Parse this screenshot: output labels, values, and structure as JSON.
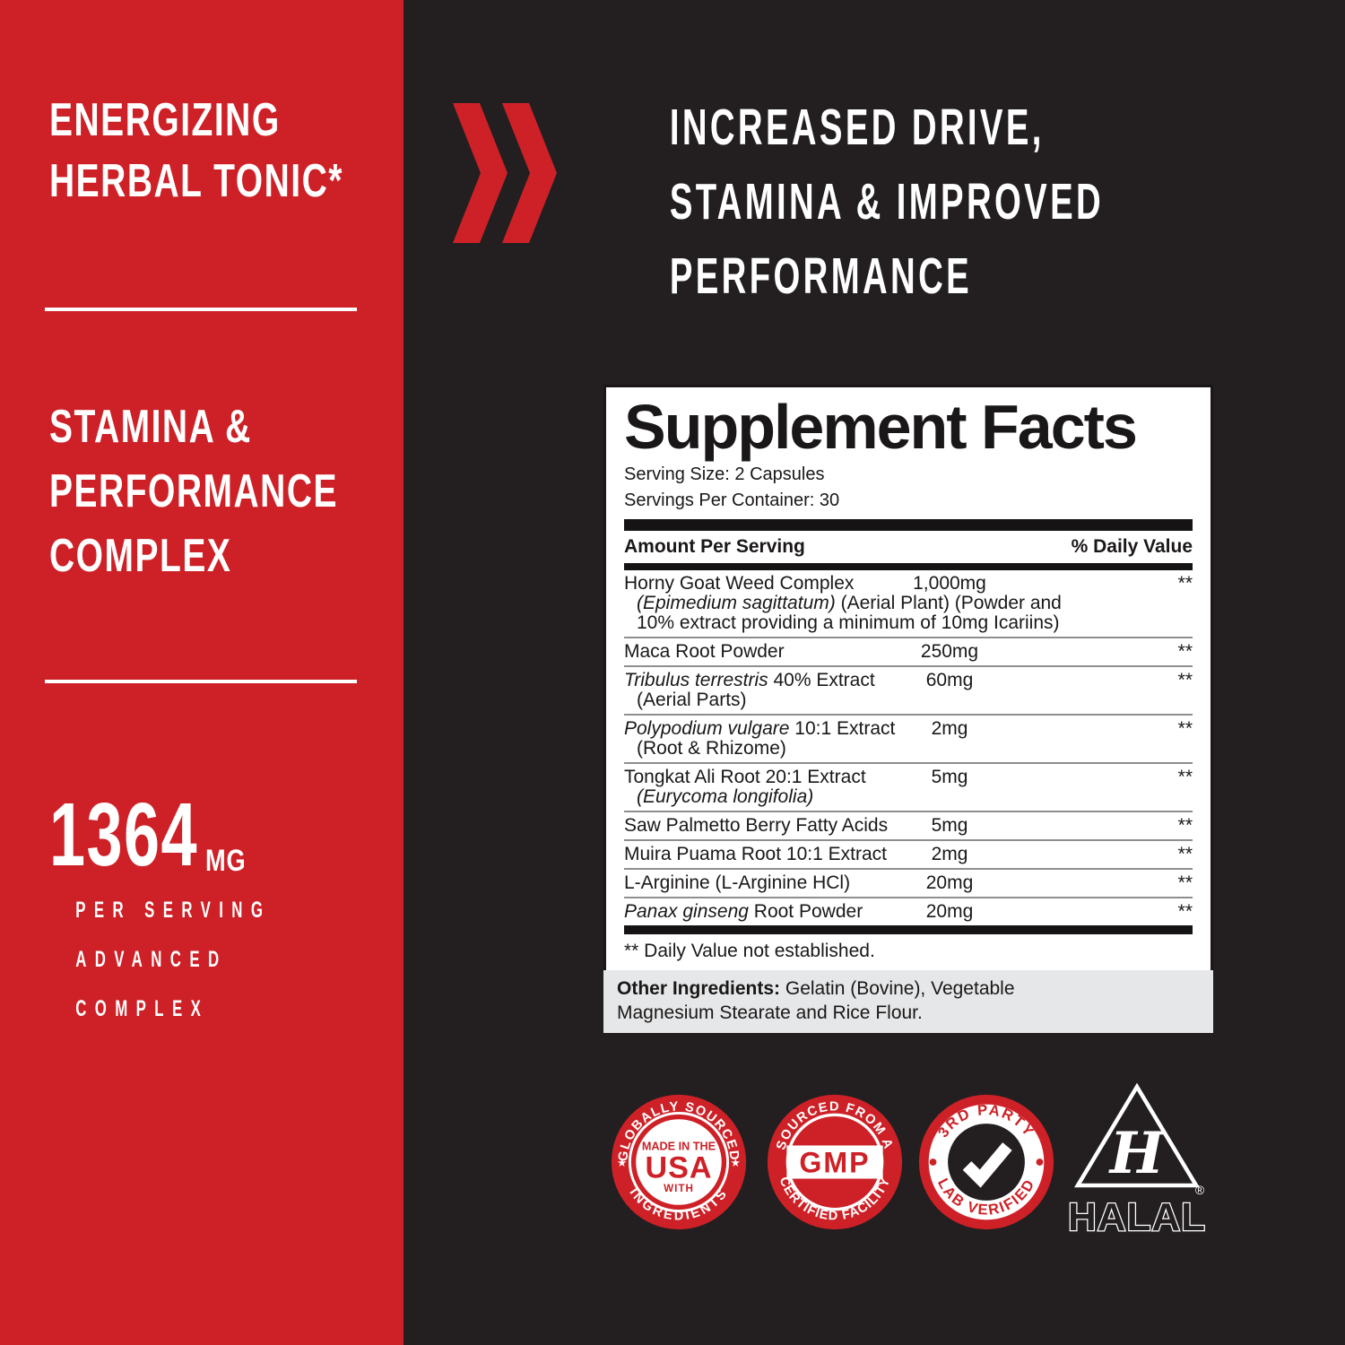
{
  "colors": {
    "red": "#CD2127",
    "dark": "#231F20",
    "gray_box": "#E6E7E8",
    "white": "#FFFFFF"
  },
  "left_panel": {
    "claim_primary": {
      "lines": [
        "ENERGIZING",
        "HERBAL TONIC*"
      ]
    },
    "claim_secondary": {
      "lines": [
        "STAMINA &",
        "PERFORMANCE",
        "COMPLEX"
      ]
    },
    "dose": {
      "value": "1364",
      "unit": "MG",
      "lines": [
        "PER SERVING",
        "ADVANCED",
        "COMPLEX"
      ]
    }
  },
  "headline": {
    "lines": [
      "INCREASED DRIVE,",
      "STAMINA & IMPROVED",
      "PERFORMANCE"
    ]
  },
  "facts": {
    "title": "Supplement Facts",
    "serving_size": "Serving Size: 2 Capsules",
    "servings_per_container": "Servings Per Container: 30",
    "amount_header": "Amount Per Serving",
    "dv_header": "% Daily Value",
    "rows": [
      {
        "name": [
          {
            "t": "Horny Goat Weed Complex",
            "i": false
          }
        ],
        "sub": [
          [
            {
              "t": "(Epimedium sagittatum)",
              "i": true
            },
            {
              "t": " (Aerial Plant) (Powder and",
              "i": false
            }
          ],
          [
            {
              "t": "10% extract providing a minimum of 10mg Icariins)",
              "i": false
            }
          ]
        ],
        "amount": "1,000mg",
        "dv": "**"
      },
      {
        "name": [
          {
            "t": "Maca Root Powder",
            "i": false
          }
        ],
        "sub": [],
        "amount": "250mg",
        "dv": "**"
      },
      {
        "name": [
          {
            "t": "Tribulus terrestris",
            "i": true
          },
          {
            "t": " 40% Extract",
            "i": false
          }
        ],
        "sub": [
          [
            {
              "t": "(Aerial Parts)",
              "i": false
            }
          ]
        ],
        "amount": "60mg",
        "dv": "**"
      },
      {
        "name": [
          {
            "t": "Polypodium vulgare",
            "i": true
          },
          {
            "t": " 10:1 Extract",
            "i": false
          }
        ],
        "sub": [
          [
            {
              "t": "(Root & Rhizome)",
              "i": false
            }
          ]
        ],
        "amount": "2mg",
        "dv": "**"
      },
      {
        "name": [
          {
            "t": "Tongkat Ali Root 20:1 Extract",
            "i": false
          }
        ],
        "sub": [
          [
            {
              "t": "(Eurycoma longifolia)",
              "i": true
            }
          ]
        ],
        "amount": "5mg",
        "dv": "**"
      },
      {
        "name": [
          {
            "t": "Saw Palmetto Berry Fatty Acids",
            "i": false
          }
        ],
        "sub": [],
        "amount": "5mg",
        "dv": "**"
      },
      {
        "name": [
          {
            "t": "Muira Puama Root 10:1 Extract",
            "i": false
          }
        ],
        "sub": [],
        "amount": "2mg",
        "dv": "**"
      },
      {
        "name": [
          {
            "t": "L-Arginine (L-Arginine HCl)",
            "i": false
          }
        ],
        "sub": [],
        "amount": "20mg",
        "dv": "**"
      },
      {
        "name": [
          {
            "t": "Panax ginseng",
            "i": true
          },
          {
            "t": " Root Powder",
            "i": false
          }
        ],
        "sub": [],
        "amount": "20mg",
        "dv": "**"
      }
    ],
    "footnote": "** Daily Value not established."
  },
  "other_ingredients": {
    "label": "Other Ingredients:",
    "line1_rest": " Gelatin (Bovine), Vegetable",
    "line2": "Magnesium Stearate and Rice Flour."
  },
  "badges": {
    "usa": {
      "arc_top": "GLOBALLY SOURCED",
      "arc_bottom": "INGREDIENTS",
      "star": "★",
      "center_top": "MADE IN THE",
      "center_main": "USA",
      "center_bottom": "WITH"
    },
    "gmp": {
      "arc_top": "SOURCED FROM A",
      "arc_bottom": "CERTIFIED FACILITY",
      "center": "GMP"
    },
    "lab": {
      "arc_top": "3RD PARTY",
      "arc_bottom": "LAB VERIFIED"
    },
    "halal": {
      "monogram": "H",
      "label": "HALAL",
      "registered": "®"
    }
  }
}
